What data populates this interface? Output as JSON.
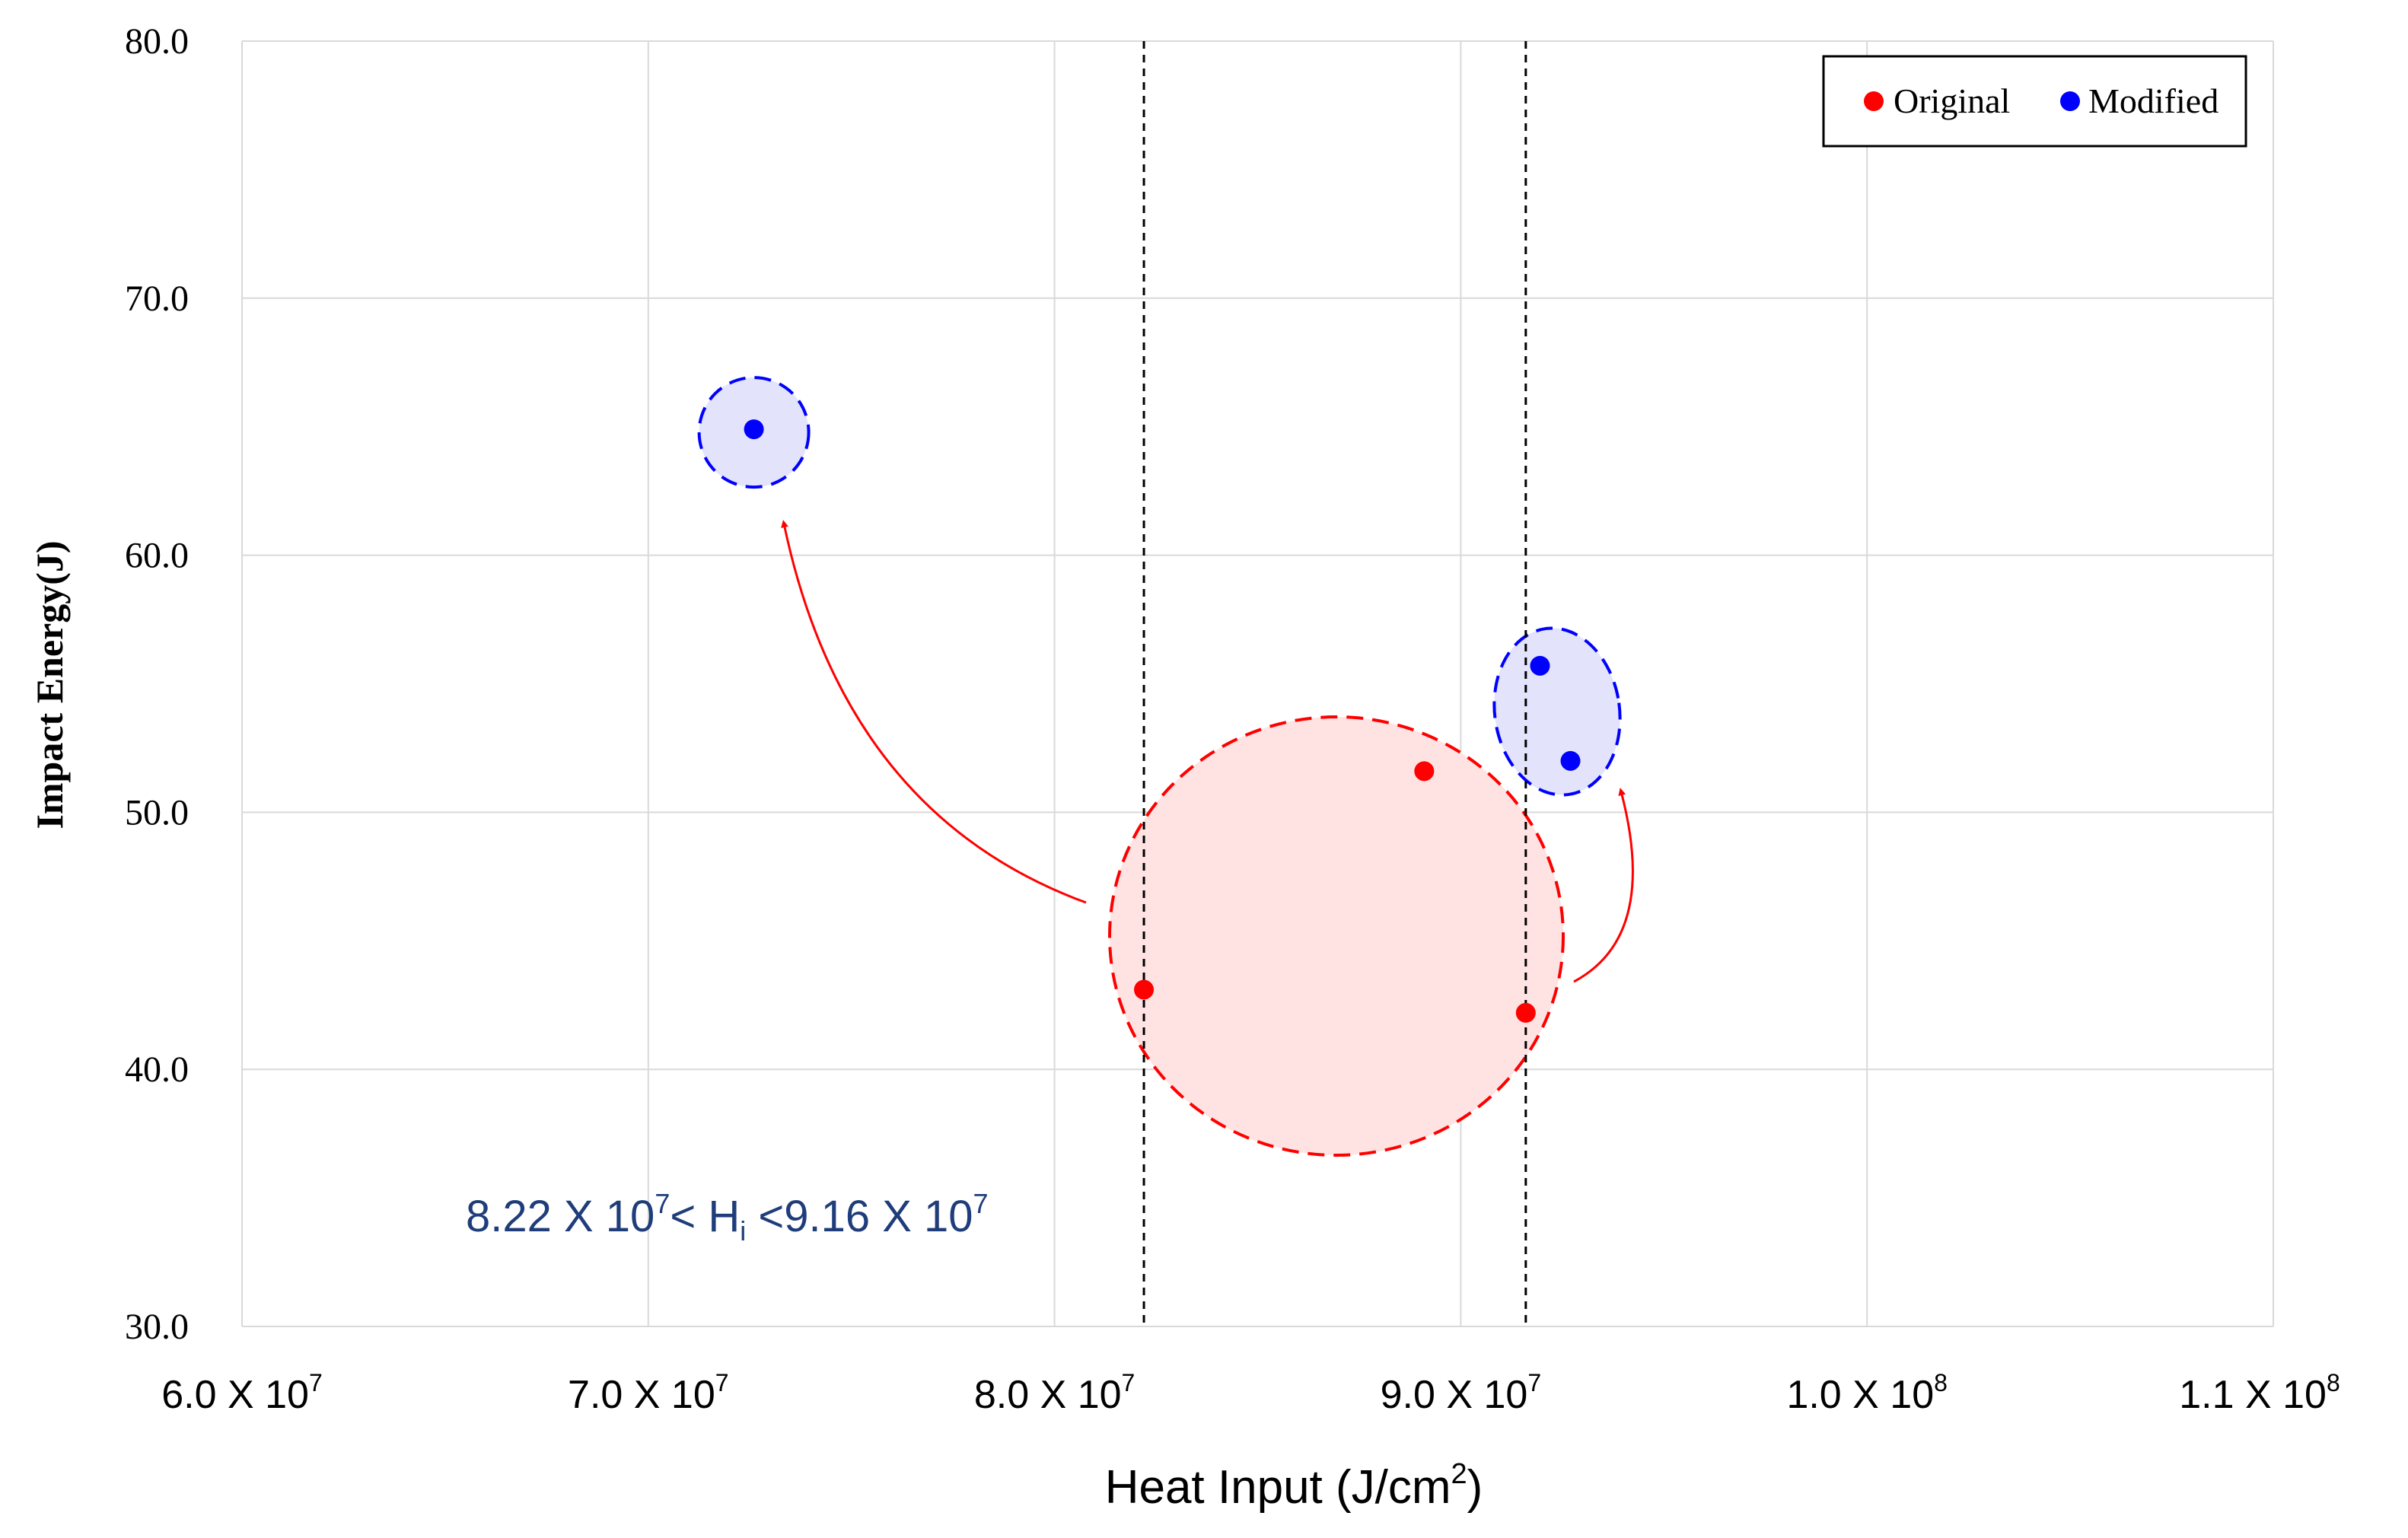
{
  "chart_data": {
    "type": "scatter",
    "xlabel": "Heat Input (J/cm",
    "xlabel_sup": "2",
    "xlabel_end": ")",
    "ylabel": "Impact Energy(J)",
    "xlim": [
      60000000,
      110000000
    ],
    "ylim": [
      30,
      80
    ],
    "grid": true,
    "legend_position": "top-right",
    "y_ticks": [
      {
        "value": 30,
        "label": "30.0"
      },
      {
        "value": 40,
        "label": "40.0"
      },
      {
        "value": 50,
        "label": "50.0"
      },
      {
        "value": 60,
        "label": "60.0"
      },
      {
        "value": 70,
        "label": "70.0"
      },
      {
        "value": 80,
        "label": "80.0"
      }
    ],
    "x_ticks": [
      {
        "value": 60000000,
        "mant": "6.0 X 10",
        "exp": "7"
      },
      {
        "value": 70000000,
        "mant": "7.0 X 10",
        "exp": "7"
      },
      {
        "value": 80000000,
        "mant": "8.0 X 10",
        "exp": "7"
      },
      {
        "value": 90000000,
        "mant": "9.0 X 10",
        "exp": "7"
      },
      {
        "value": 100000000,
        "mant": "1.0 X 10",
        "exp": "8"
      },
      {
        "value": 110000000,
        "mant": "1.1 X 10",
        "exp": "8"
      }
    ],
    "series": [
      {
        "name": "Original",
        "color": "#ff0000",
        "points": [
          {
            "x": 82200000,
            "y": 43.1
          },
          {
            "x": 89100000,
            "y": 51.6
          },
          {
            "x": 91600000,
            "y": 42.2
          }
        ]
      },
      {
        "name": "Modified",
        "color": "#0000ff",
        "points": [
          {
            "x": 72600000,
            "y": 64.9
          },
          {
            "x": 91950000,
            "y": 55.7
          },
          {
            "x": 92700000,
            "y": 52.0
          }
        ]
      }
    ],
    "reference_lines_x": [
      82200000,
      91600000
    ],
    "annotation": {
      "a": "8.22 X 10",
      "a_exp": "7",
      "b": "< H",
      "b_sub": "i",
      "c": " <9.16 X 10",
      "c_exp": "7"
    },
    "colors": {
      "original": "#ff0000",
      "modified": "#0000ff",
      "annotation_text": "#1f3d7a"
    }
  }
}
